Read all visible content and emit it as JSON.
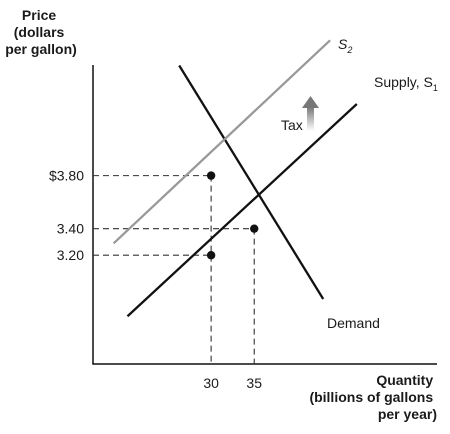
{
  "chart_data": {
    "type": "line",
    "ylabel_lines": [
      "Price",
      "(dollars",
      "per gallon)"
    ],
    "xlabel_lines": [
      "Quantity",
      "(billions of gallons",
      "per year)"
    ],
    "y_ticks": [
      {
        "value": 3.8,
        "label": "$3.80"
      },
      {
        "value": 3.4,
        "label": "3.40"
      },
      {
        "value": 3.2,
        "label": "3.20"
      }
    ],
    "x_ticks": [
      {
        "value": 30,
        "label": "30"
      },
      {
        "value": 35,
        "label": "35"
      }
    ],
    "xlim": [
      16.3,
      56.2
    ],
    "ylim": [
      2.38,
      4.86
    ],
    "series": [
      {
        "name": "Demand",
        "color": "#111111",
        "x": [
          26.3,
          43.0
        ],
        "y": [
          4.63,
          2.87
        ]
      },
      {
        "name": "Supply, S1",
        "color": "#111111",
        "x": [
          20.3,
          46.9
        ],
        "y": [
          2.74,
          4.34
        ]
      },
      {
        "name": "S2",
        "color": "#999999",
        "x": [
          18.7,
          43.8
        ],
        "y": [
          3.29,
          4.82
        ]
      }
    ],
    "points": [
      {
        "x": 30,
        "y": 3.8
      },
      {
        "x": 35,
        "y": 3.4
      },
      {
        "x": 30,
        "y": 3.2
      }
    ],
    "annotation": {
      "label": "Tax"
    },
    "series_labels": {
      "s2_main": "S",
      "s2_sub": "2",
      "s1_main": "Supply, S",
      "s1_sub": "1",
      "demand": "Demand"
    },
    "legend": "none",
    "grid": false
  }
}
